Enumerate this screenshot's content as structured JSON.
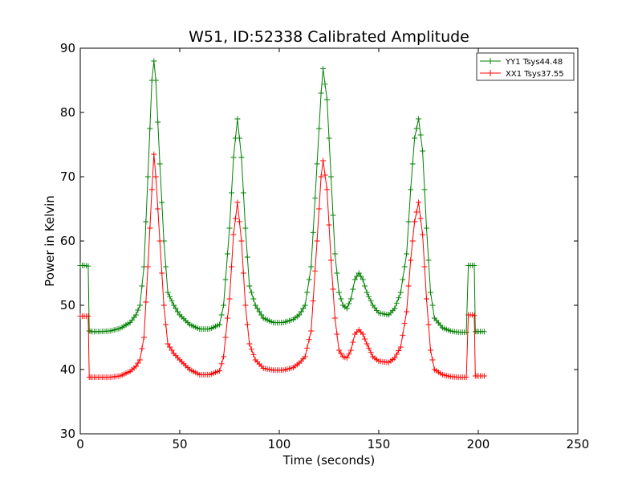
{
  "chart_data": {
    "type": "line",
    "title": "W51, ID:52338 Calibrated Amplitude",
    "xlabel": "Time (seconds)",
    "ylabel": "Power in Kelvin",
    "xlim": [
      0,
      250
    ],
    "ylim": [
      30,
      90
    ],
    "x_ticks": [
      "0",
      "50",
      "100",
      "150",
      "200",
      "250"
    ],
    "y_ticks": [
      "30",
      "40",
      "50",
      "60",
      "70",
      "80",
      "90"
    ],
    "grid": false,
    "legend_position": "top-right",
    "marker": "+",
    "series": [
      {
        "name": "YY1 Tsys44.48",
        "color": "#008000",
        "points": [
          [
            0,
            56.2
          ],
          [
            2,
            56.2
          ],
          [
            4,
            56.1
          ],
          [
            4.5,
            46.0
          ],
          [
            6,
            45.9
          ],
          [
            10,
            45.9
          ],
          [
            15,
            46.0
          ],
          [
            20,
            46.4
          ],
          [
            25,
            47.3
          ],
          [
            28,
            48.5
          ],
          [
            30,
            50.0
          ],
          [
            32,
            56.0
          ],
          [
            34,
            70.0
          ],
          [
            36,
            85.0
          ],
          [
            37,
            88.0
          ],
          [
            38,
            85.0
          ],
          [
            40,
            72.0
          ],
          [
            42,
            60.0
          ],
          [
            44,
            52.0
          ],
          [
            47,
            50.0
          ],
          [
            50,
            48.5
          ],
          [
            55,
            47.0
          ],
          [
            60,
            46.3
          ],
          [
            65,
            46.3
          ],
          [
            70,
            47.0
          ],
          [
            72,
            50.0
          ],
          [
            75,
            62.0
          ],
          [
            77,
            73.0
          ],
          [
            79,
            79.0
          ],
          [
            81,
            73.0
          ],
          [
            83,
            62.0
          ],
          [
            85,
            53.0
          ],
          [
            88,
            50.0
          ],
          [
            92,
            48.0
          ],
          [
            97,
            47.3
          ],
          [
            102,
            47.3
          ],
          [
            107,
            47.8
          ],
          [
            110,
            48.5
          ],
          [
            113,
            50.0
          ],
          [
            116,
            56.0
          ],
          [
            119,
            72.0
          ],
          [
            121,
            83.0
          ],
          [
            122,
            86.8
          ],
          [
            124,
            82.0
          ],
          [
            126,
            70.0
          ],
          [
            128,
            58.0
          ],
          [
            130,
            52.0
          ],
          [
            132,
            50.0
          ],
          [
            134,
            49.5
          ],
          [
            136,
            51.0
          ],
          [
            138,
            54.0
          ],
          [
            140,
            55.0
          ],
          [
            142,
            54.0
          ],
          [
            144,
            52.0
          ],
          [
            147,
            50.0
          ],
          [
            150,
            48.8
          ],
          [
            155,
            48.5
          ],
          [
            158,
            49.5
          ],
          [
            161,
            52.0
          ],
          [
            164,
            58.0
          ],
          [
            166,
            68.0
          ],
          [
            168,
            76.0
          ],
          [
            170,
            79.0
          ],
          [
            172,
            74.0
          ],
          [
            174,
            62.0
          ],
          [
            176,
            52.0
          ],
          [
            178,
            48.0
          ],
          [
            182,
            46.5
          ],
          [
            186,
            46.0
          ],
          [
            190,
            45.8
          ],
          [
            194,
            45.8
          ],
          [
            195,
            56.2
          ],
          [
            197,
            56.2
          ],
          [
            198,
            56.2
          ],
          [
            198.5,
            45.9
          ],
          [
            200,
            45.9
          ],
          [
            203,
            45.9
          ]
        ]
      },
      {
        "name": "XX1 Tsys37.55",
        "color": "#ff0000",
        "points": [
          [
            0,
            48.3
          ],
          [
            2,
            48.3
          ],
          [
            4,
            48.3
          ],
          [
            4.5,
            38.8
          ],
          [
            6,
            38.8
          ],
          [
            10,
            38.8
          ],
          [
            15,
            38.8
          ],
          [
            20,
            39.0
          ],
          [
            25,
            39.7
          ],
          [
            28,
            40.5
          ],
          [
            30,
            41.5
          ],
          [
            32,
            45.0
          ],
          [
            34,
            56.0
          ],
          [
            36,
            68.0
          ],
          [
            37,
            73.5
          ],
          [
            38,
            70.0
          ],
          [
            40,
            60.0
          ],
          [
            42,
            50.0
          ],
          [
            44,
            44.0
          ],
          [
            47,
            42.5
          ],
          [
            50,
            41.5
          ],
          [
            55,
            40.0
          ],
          [
            60,
            39.2
          ],
          [
            65,
            39.2
          ],
          [
            70,
            39.8
          ],
          [
            72,
            42.0
          ],
          [
            75,
            51.0
          ],
          [
            77,
            61.0
          ],
          [
            79,
            66.0
          ],
          [
            81,
            60.0
          ],
          [
            83,
            50.0
          ],
          [
            85,
            44.0
          ],
          [
            88,
            41.5
          ],
          [
            92,
            40.2
          ],
          [
            97,
            39.9
          ],
          [
            102,
            39.9
          ],
          [
            107,
            40.3
          ],
          [
            110,
            41.0
          ],
          [
            113,
            42.0
          ],
          [
            116,
            46.0
          ],
          [
            119,
            60.0
          ],
          [
            121,
            70.0
          ],
          [
            122,
            72.5
          ],
          [
            124,
            68.0
          ],
          [
            126,
            57.0
          ],
          [
            128,
            48.0
          ],
          [
            130,
            43.0
          ],
          [
            132,
            42.0
          ],
          [
            134,
            41.8
          ],
          [
            136,
            43.0
          ],
          [
            138,
            45.5
          ],
          [
            140,
            46.2
          ],
          [
            142,
            45.5
          ],
          [
            144,
            44.0
          ],
          [
            147,
            42.0
          ],
          [
            150,
            41.3
          ],
          [
            155,
            41.1
          ],
          [
            158,
            41.8
          ],
          [
            161,
            43.5
          ],
          [
            164,
            49.0
          ],
          [
            166,
            57.0
          ],
          [
            168,
            63.0
          ],
          [
            170,
            66.0
          ],
          [
            172,
            61.0
          ],
          [
            174,
            51.0
          ],
          [
            176,
            43.0
          ],
          [
            178,
            40.0
          ],
          [
            182,
            39.2
          ],
          [
            186,
            38.9
          ],
          [
            190,
            38.8
          ],
          [
            194,
            38.8
          ],
          [
            195,
            48.5
          ],
          [
            197,
            48.5
          ],
          [
            198,
            48.4
          ],
          [
            198.5,
            39.0
          ],
          [
            200,
            39.0
          ],
          [
            203,
            39.0
          ]
        ]
      }
    ]
  }
}
